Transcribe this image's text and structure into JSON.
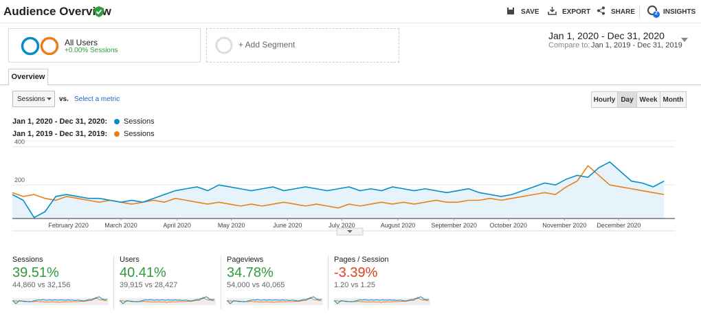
{
  "header": {
    "title": "Audience Overview",
    "actions": [
      "SAVE",
      "EXPORT",
      "SHARE",
      "INSIGHTS"
    ],
    "insights_badge": "2"
  },
  "segments": [
    {
      "name": "All Users",
      "detail": "+0.00% Sessions"
    }
  ],
  "add_segment": "+ Add Segment",
  "date_range": {
    "range": "Jan 1, 2020 - Dec 31, 2020",
    "compare_label": "Compare to:",
    "compare_range": "Jan 1, 2019 - Dec 31, 2019"
  },
  "tab": "Overview",
  "controls": {
    "metric": "Sessions",
    "vs": "vs.",
    "select_metric": "Select a metric",
    "granularity": [
      "Hourly",
      "Day",
      "Week",
      "Month"
    ],
    "active": 1
  },
  "chart_data": {
    "type": "line",
    "x": [
      0,
      6,
      12,
      18,
      24,
      30,
      36,
      42,
      48,
      54,
      60,
      66,
      72,
      78,
      84,
      90,
      96,
      102,
      108,
      114,
      120,
      126,
      132,
      138,
      144,
      150,
      156,
      162,
      168,
      174,
      180,
      186,
      192,
      198,
      204,
      210,
      216,
      222,
      228,
      234,
      240,
      246,
      252,
      258,
      264,
      270,
      276,
      282,
      288,
      294,
      300,
      306,
      312,
      318,
      324,
      330,
      336,
      342,
      348,
      354,
      360
    ],
    "series": [
      {
        "name": "Sessions",
        "label": "Jan 1, 2020 - Dec 31, 2020:",
        "color": "#058dc7",
        "area": "#e6f3fa",
        "values": [
          150,
          120,
          30,
          60,
          140,
          150,
          140,
          130,
          130,
          120,
          110,
          120,
          110,
          130,
          150,
          170,
          180,
          190,
          170,
          200,
          190,
          180,
          170,
          180,
          190,
          170,
          180,
          190,
          180,
          170,
          180,
          190,
          170,
          180,
          170,
          190,
          180,
          170,
          180,
          170,
          160,
          170,
          180,
          160,
          150,
          140,
          150,
          170,
          190,
          210,
          200,
          230,
          250,
          240,
          290,
          320,
          270,
          220,
          210,
          190,
          220
        ]
      },
      {
        "name": "Sessions",
        "label": "Jan 1, 2019 - Dec 31, 2019:",
        "color": "#ed7e17",
        "values": [
          160,
          140,
          150,
          130,
          120,
          140,
          130,
          120,
          110,
          120,
          110,
          100,
          110,
          120,
          110,
          130,
          120,
          110,
          100,
          110,
          100,
          90,
          100,
          90,
          100,
          110,
          100,
          90,
          100,
          90,
          80,
          100,
          90,
          100,
          110,
          100,
          110,
          100,
          110,
          120,
          110,
          110,
          120,
          120,
          130,
          120,
          130,
          140,
          150,
          160,
          150,
          190,
          220,
          300,
          250,
          200,
          190,
          180,
          170,
          160,
          150
        ]
      }
    ],
    "xlim": [
      0,
      366
    ],
    "xticks": [
      {
        "value": 31,
        "label": "February 2020"
      },
      {
        "value": 60,
        "label": "March 2020"
      },
      {
        "value": 91,
        "label": "April 2020"
      },
      {
        "value": 121,
        "label": "May 2020"
      },
      {
        "value": 152,
        "label": "June 2020"
      },
      {
        "value": 182,
        "label": "July 2020"
      },
      {
        "value": 213,
        "label": "August 2020"
      },
      {
        "value": 244,
        "label": "September 2020"
      },
      {
        "value": 274,
        "label": "October 2020"
      },
      {
        "value": 305,
        "label": "November 2020"
      },
      {
        "value": 335,
        "label": "December 2020"
      }
    ],
    "ylim": [
      25,
      430
    ],
    "yticks": [
      200,
      400
    ],
    "grid": true
  },
  "scorecards": [
    {
      "name": "Sessions",
      "change": "39.51%",
      "comparison": "44,860 vs 32,156",
      "color": "#2e9c3c"
    },
    {
      "name": "Users",
      "change": "40.41%",
      "comparison": "39,915 vs 28,427",
      "color": "#2e9c3c"
    },
    {
      "name": "Pageviews",
      "change": "34.78%",
      "comparison": "54,000 vs 40,065",
      "color": "#2e9c3c"
    },
    {
      "name": "Pages / Session",
      "change": "-3.39%",
      "comparison": "1.20 vs 1.25",
      "color": "#e0401c"
    }
  ]
}
